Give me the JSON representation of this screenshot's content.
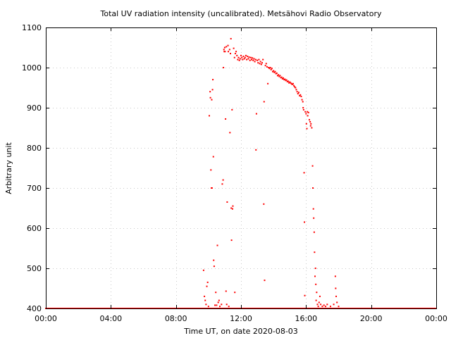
{
  "chart_data": {
    "type": "scatter",
    "title": "Total UV radiation intensity (uncalibrated). Metsähovi Radio Observatory",
    "xlabel": "Time UT, on date 2020-08-03",
    "ylabel": "Arbitrary unit",
    "xlim": [
      0,
      24
    ],
    "ylim": [
      400,
      1100
    ],
    "x_ticks": [
      0,
      4,
      8,
      12,
      16,
      20,
      24
    ],
    "x_tick_labels": [
      "00:00",
      "04:00",
      "08:00",
      "12:00",
      "16:00",
      "20:00",
      "00:00"
    ],
    "y_ticks": [
      400,
      500,
      600,
      700,
      800,
      900,
      1000,
      1100
    ],
    "y_tick_labels": [
      "400",
      "500",
      "600",
      "700",
      "800",
      "900",
      "1000",
      "1100"
    ],
    "grid": true,
    "marker_color": "#ff0000",
    "series": [
      {
        "baseline": {
          "x_start": 0.0,
          "x_end": 24.0,
          "step": 0.04,
          "y": 400
        },
        "points": [
          [
            9.7,
            495
          ],
          [
            9.75,
            430
          ],
          [
            9.8,
            420
          ],
          [
            9.85,
            410
          ],
          [
            9.9,
            455
          ],
          [
            9.95,
            465
          ],
          [
            10.0,
            405
          ],
          [
            10.05,
            880
          ],
          [
            10.1,
            940
          ],
          [
            10.12,
            925
          ],
          [
            10.15,
            745
          ],
          [
            10.18,
            700
          ],
          [
            10.2,
            920
          ],
          [
            10.22,
            700
          ],
          [
            10.25,
            945
          ],
          [
            10.27,
            970
          ],
          [
            10.3,
            778
          ],
          [
            10.32,
            520
          ],
          [
            10.35,
            505
          ],
          [
            10.4,
            408
          ],
          [
            10.45,
            440
          ],
          [
            10.5,
            408
          ],
          [
            10.55,
            557
          ],
          [
            10.6,
            415
          ],
          [
            10.65,
            420
          ],
          [
            10.7,
            405
          ],
          [
            10.8,
            410
          ],
          [
            10.85,
            710
          ],
          [
            10.9,
            720
          ],
          [
            10.92,
            1000
          ],
          [
            10.95,
            1045
          ],
          [
            10.97,
            1040
          ],
          [
            11.0,
            1050
          ],
          [
            11.02,
            1040
          ],
          [
            11.05,
            872
          ],
          [
            11.08,
            443
          ],
          [
            11.1,
            1052
          ],
          [
            11.12,
            410
          ],
          [
            11.15,
            665
          ],
          [
            11.2,
            1055
          ],
          [
            11.22,
            1040
          ],
          [
            11.25,
            405
          ],
          [
            11.3,
            1045
          ],
          [
            11.32,
            838
          ],
          [
            11.35,
            1035
          ],
          [
            11.38,
            1072
          ],
          [
            11.4,
            650
          ],
          [
            11.42,
            570
          ],
          [
            11.45,
            895
          ],
          [
            11.48,
            648
          ],
          [
            11.5,
            655
          ],
          [
            11.55,
            1048
          ],
          [
            11.6,
            1025
          ],
          [
            11.62,
            440
          ],
          [
            11.65,
            1035
          ],
          [
            11.7,
            1040
          ],
          [
            11.75,
            1030
          ],
          [
            11.8,
            1020
          ],
          [
            11.85,
            1025
          ],
          [
            11.9,
            1018
          ],
          [
            11.95,
            1022
          ],
          [
            12.0,
            1030
          ],
          [
            12.05,
            1025
          ],
          [
            12.1,
            1020
          ],
          [
            12.15,
            1028
          ],
          [
            12.2,
            1022
          ],
          [
            12.25,
            1025
          ],
          [
            12.3,
            1030
          ],
          [
            12.35,
            1020
          ],
          [
            12.4,
            1028
          ],
          [
            12.45,
            1022
          ],
          [
            12.5,
            1026
          ],
          [
            12.55,
            1018
          ],
          [
            12.6,
            1025
          ],
          [
            12.65,
            1020
          ],
          [
            12.7,
            1024
          ],
          [
            12.75,
            1018
          ],
          [
            12.8,
            1022
          ],
          [
            12.85,
            1015
          ],
          [
            12.9,
            1020
          ],
          [
            12.92,
            795
          ],
          [
            12.95,
            885
          ],
          [
            13.0,
            1018
          ],
          [
            13.05,
            1012
          ],
          [
            13.1,
            1020
          ],
          [
            13.15,
            1010
          ],
          [
            13.2,
            1015
          ],
          [
            13.25,
            1008
          ],
          [
            13.3,
            1012
          ],
          [
            13.35,
            1020
          ],
          [
            13.4,
            660
          ],
          [
            13.42,
            915
          ],
          [
            13.45,
            470
          ],
          [
            13.5,
            1005
          ],
          [
            13.55,
            1010
          ],
          [
            13.6,
            1002
          ],
          [
            13.65,
            960
          ],
          [
            13.7,
            1000
          ],
          [
            13.75,
            998
          ],
          [
            13.8,
            1000
          ],
          [
            13.85,
            995
          ],
          [
            13.9,
            998
          ],
          [
            13.95,
            990
          ],
          [
            14.0,
            992
          ],
          [
            14.05,
            988
          ],
          [
            14.1,
            990
          ],
          [
            14.15,
            985
          ],
          [
            14.2,
            986
          ],
          [
            14.25,
            980
          ],
          [
            14.3,
            982
          ],
          [
            14.35,
            978
          ],
          [
            14.4,
            980
          ],
          [
            14.45,
            975
          ],
          [
            14.5,
            976
          ],
          [
            14.55,
            972
          ],
          [
            14.6,
            974
          ],
          [
            14.65,
            970
          ],
          [
            14.7,
            971
          ],
          [
            14.75,
            968
          ],
          [
            14.8,
            969
          ],
          [
            14.85,
            965
          ],
          [
            14.9,
            966
          ],
          [
            14.95,
            962
          ],
          [
            15.0,
            964
          ],
          [
            15.05,
            962
          ],
          [
            15.1,
            960
          ],
          [
            15.15,
            958
          ],
          [
            15.2,
            960
          ],
          [
            15.25,
            955
          ],
          [
            15.3,
            952
          ],
          [
            15.35,
            950
          ],
          [
            15.4,
            945
          ],
          [
            15.45,
            940
          ],
          [
            15.5,
            935
          ],
          [
            15.55,
            938
          ],
          [
            15.6,
            930
          ],
          [
            15.65,
            932
          ],
          [
            15.7,
            928
          ],
          [
            15.75,
            920
          ],
          [
            15.8,
            915
          ],
          [
            15.82,
            900
          ],
          [
            15.85,
            895
          ],
          [
            15.88,
            738
          ],
          [
            15.9,
            615
          ],
          [
            15.92,
            432
          ],
          [
            15.95,
            890
          ],
          [
            16.0,
            885
          ],
          [
            16.02,
            860
          ],
          [
            16.05,
            848
          ],
          [
            16.08,
            890
          ],
          [
            16.1,
            880
          ],
          [
            16.15,
            888
          ],
          [
            16.2,
            870
          ],
          [
            16.25,
            865
          ],
          [
            16.28,
            855
          ],
          [
            16.3,
            860
          ],
          [
            16.35,
            850
          ],
          [
            16.4,
            755
          ],
          [
            16.42,
            700
          ],
          [
            16.45,
            648
          ],
          [
            16.47,
            625
          ],
          [
            16.5,
            590
          ],
          [
            16.52,
            540
          ],
          [
            16.55,
            480
          ],
          [
            16.58,
            500
          ],
          [
            16.6,
            460
          ],
          [
            16.62,
            420
          ],
          [
            16.65,
            440
          ],
          [
            16.7,
            410
          ],
          [
            16.75,
            405
          ],
          [
            16.8,
            415
          ],
          [
            16.85,
            430
          ],
          [
            16.9,
            410
          ],
          [
            17.0,
            405
          ],
          [
            17.1,
            408
          ],
          [
            17.2,
            405
          ],
          [
            17.3,
            410
          ],
          [
            17.5,
            405
          ],
          [
            17.7,
            410
          ],
          [
            17.8,
            480
          ],
          [
            17.82,
            450
          ],
          [
            17.85,
            430
          ],
          [
            17.9,
            415
          ],
          [
            18.0,
            405
          ]
        ]
      }
    ]
  }
}
